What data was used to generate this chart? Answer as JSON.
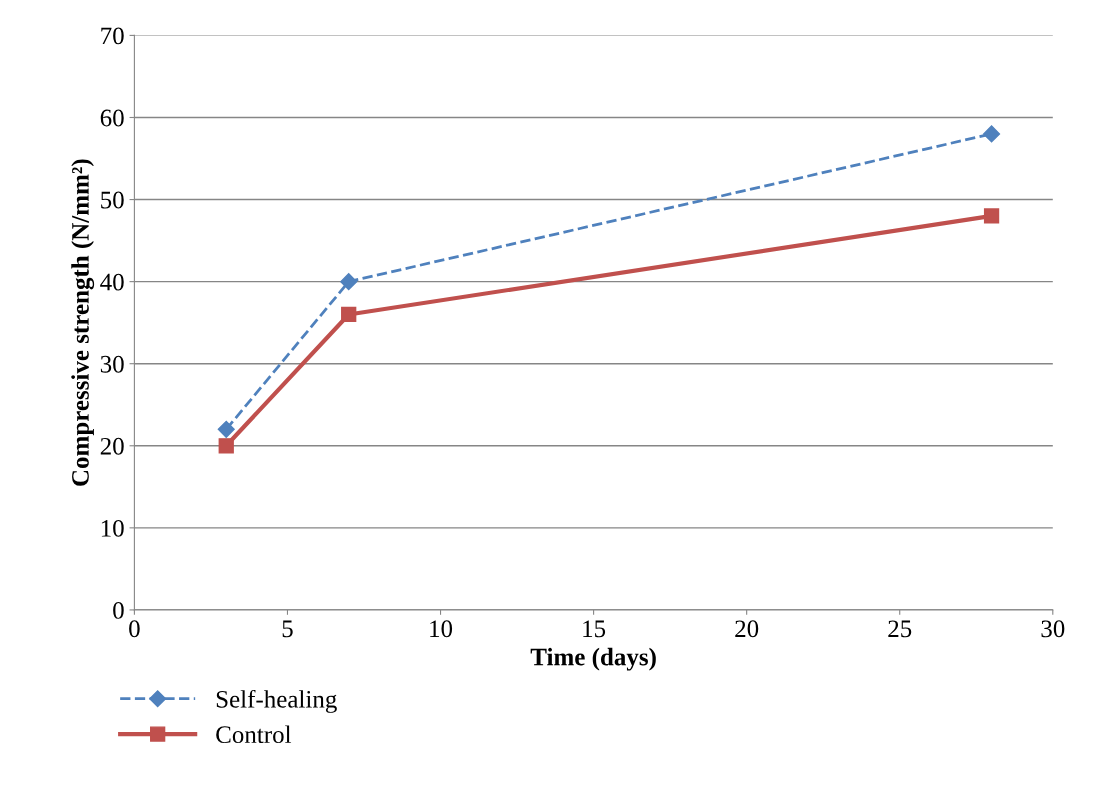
{
  "chart_data": {
    "type": "line",
    "xlabel": "Time (days)",
    "ylabel": "Compressive strength (N/mm²)",
    "xlim": [
      0,
      30
    ],
    "xticks": [
      0,
      5,
      10,
      15,
      20,
      25,
      30
    ],
    "ylim": [
      0,
      70
    ],
    "yticks": [
      0,
      10,
      20,
      30,
      40,
      50,
      60,
      70
    ],
    "grid": "y",
    "legend": "bottom left",
    "series": [
      {
        "name": "Self-healing",
        "color": "#4f81bd",
        "x": [
          3,
          7,
          28
        ],
        "values": [
          22,
          40,
          58
        ],
        "marker": "diamond",
        "line_style": "dashed"
      },
      {
        "name": "Control",
        "color": "#c0504d",
        "x": [
          3,
          7,
          28
        ],
        "values": [
          20,
          36,
          48
        ],
        "marker": "square",
        "line_style": "solid"
      }
    ]
  }
}
